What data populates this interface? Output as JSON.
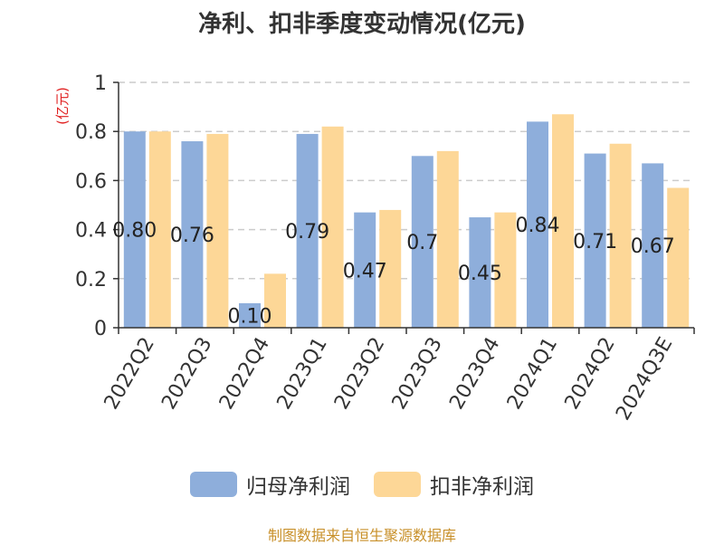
{
  "chart_data": {
    "type": "bar",
    "title": "净利、扣非季度变动情况(亿元)",
    "ylabel": "(亿元)",
    "xlabel": "",
    "categories": [
      "2022Q2",
      "2022Q3",
      "2022Q4",
      "2023Q1",
      "2023Q2",
      "2023Q3",
      "2023Q4",
      "2024Q1",
      "2024Q2",
      "2024Q3E"
    ],
    "series": [
      {
        "name": "归母净利润",
        "values": [
          0.8,
          0.76,
          0.1,
          0.79,
          0.47,
          0.7,
          0.45,
          0.84,
          0.71,
          0.67
        ],
        "labels": [
          "0.80",
          "0.76",
          "0.10",
          "0.79",
          "0.47",
          "0.7",
          "0.45",
          "0.84",
          "0.71",
          "0.67"
        ],
        "color": "#8eaedb"
      },
      {
        "name": "扣非净利润",
        "values": [
          0.8,
          0.79,
          0.22,
          0.82,
          0.48,
          0.72,
          0.47,
          0.87,
          0.75,
          0.57
        ],
        "color": "#fdd797"
      }
    ],
    "ylim": [
      0,
      1
    ],
    "yticks": [
      0,
      0.2,
      0.4,
      0.6,
      0.8,
      1
    ],
    "ytick_labels": [
      "0",
      "0.2",
      "0.4",
      "0.6",
      "0.8",
      "1"
    ],
    "grid": true,
    "legend_position": "bottom"
  },
  "footer": {
    "source": "制图数据来自恒生聚源数据库"
  },
  "colors": {
    "ylabel": "#e02020",
    "axis": "#333333",
    "grid": "#cccccc",
    "source": "#c8902a"
  }
}
